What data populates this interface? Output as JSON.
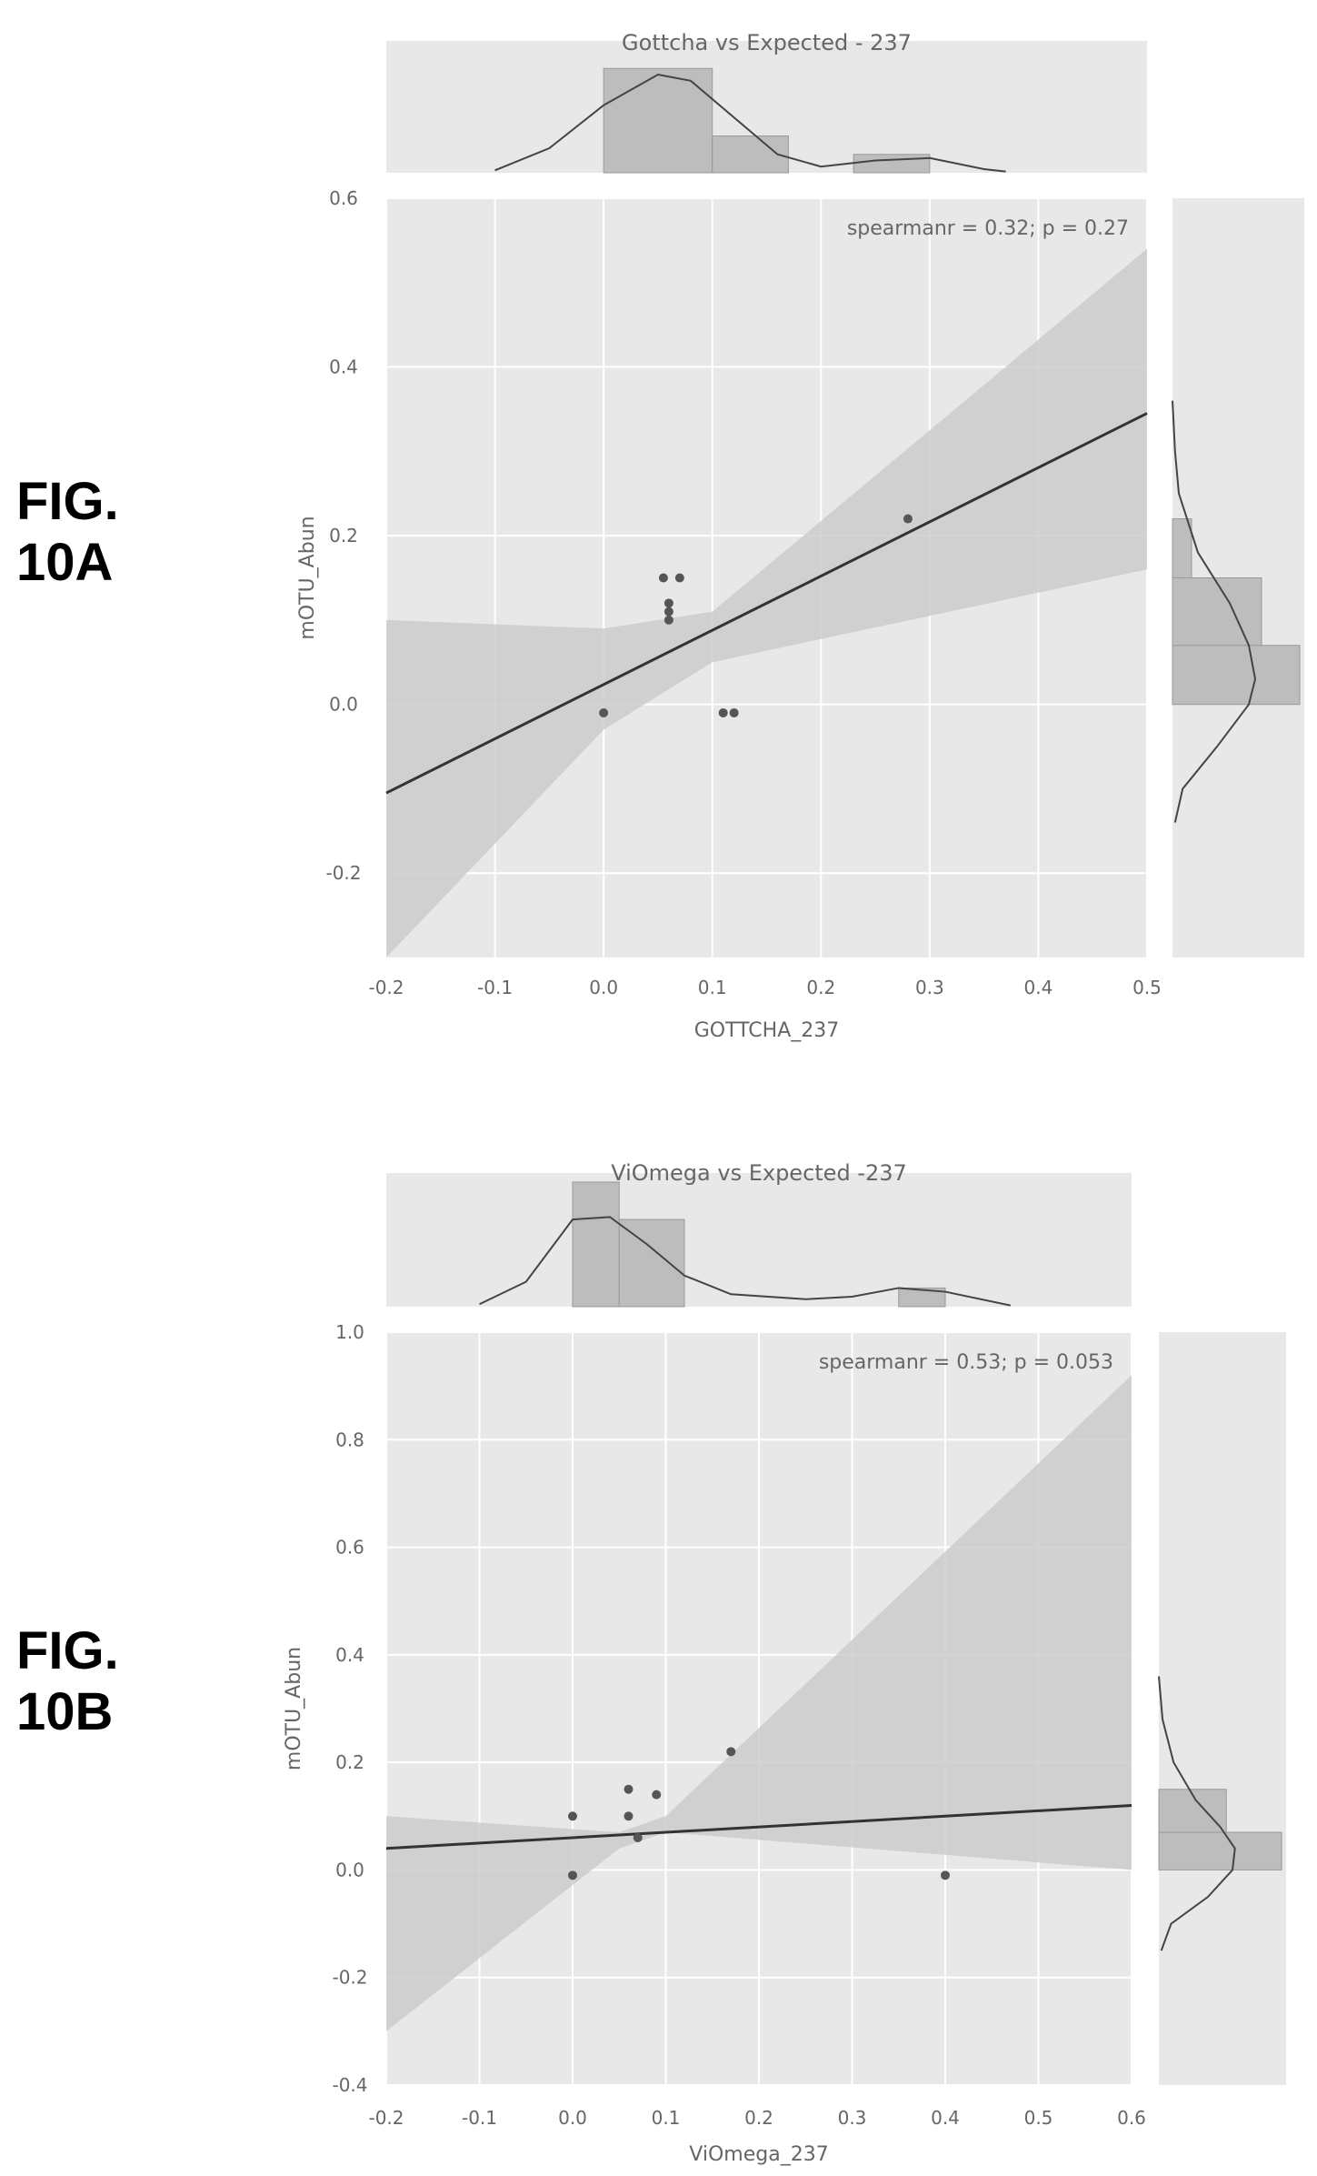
{
  "chart_data": [
    {
      "figure_label": "FIG. 10A",
      "type": "scatter",
      "title": "Gottcha vs Expected - 237",
      "xlabel": "GOTTCHA_237",
      "ylabel": "mOTU_Abun",
      "annotation": "spearmanr = 0.32; p = 0.27",
      "xlim": [
        -0.2,
        0.5
      ],
      "ylim": [
        -0.3,
        0.6
      ],
      "xticks": [
        -0.2,
        -0.1,
        0.0,
        0.1,
        0.2,
        0.3,
        0.4,
        0.5
      ],
      "xtick_labels": [
        "-0.2",
        "-0.1",
        "0.0",
        "0.1",
        "0.2",
        "0.3",
        "0.4",
        "0.5"
      ],
      "yticks": [
        -0.2,
        0.0,
        0.2,
        0.4,
        0.6
      ],
      "ytick_labels": [
        "-0.2",
        "0.0",
        "0.2",
        "0.4",
        "0.6"
      ],
      "grid": true,
      "points": [
        {
          "x": 0.0,
          "y": -0.01
        },
        {
          "x": 0.055,
          "y": 0.15
        },
        {
          "x": 0.07,
          "y": 0.15
        },
        {
          "x": 0.06,
          "y": 0.12
        },
        {
          "x": 0.06,
          "y": 0.11
        },
        {
          "x": 0.06,
          "y": 0.1
        },
        {
          "x": 0.11,
          "y": -0.01
        },
        {
          "x": 0.12,
          "y": -0.01
        },
        {
          "x": 0.28,
          "y": 0.22
        }
      ],
      "regression": {
        "x": [
          -0.2,
          0.5
        ],
        "y": [
          -0.105,
          0.345
        ]
      },
      "ci_band": {
        "x": [
          -0.2,
          0.0,
          0.1,
          0.5
        ],
        "lower": [
          -0.3,
          -0.03,
          0.05,
          0.16
        ],
        "upper": [
          0.1,
          0.09,
          0.11,
          0.54
        ]
      },
      "marginal_x": {
        "bins": [
          {
            "from": 0.0,
            "to": 0.1,
            "height": 0.85
          },
          {
            "from": 0.1,
            "to": 0.17,
            "height": 0.3
          },
          {
            "from": 0.23,
            "to": 0.3,
            "height": 0.15
          }
        ],
        "kde_x": [
          -0.1,
          -0.05,
          0.0,
          0.05,
          0.08,
          0.12,
          0.16,
          0.2,
          0.25,
          0.3,
          0.35,
          0.37
        ],
        "kde_y": [
          0.02,
          0.2,
          0.55,
          0.8,
          0.75,
          0.45,
          0.15,
          0.05,
          0.1,
          0.12,
          0.03,
          0.01
        ]
      },
      "marginal_y": {
        "bins": [
          {
            "from": 0.0,
            "to": 0.07,
            "height": 1.0
          },
          {
            "from": 0.07,
            "to": 0.15,
            "height": 0.7
          },
          {
            "from": 0.15,
            "to": 0.22,
            "height": 0.15
          }
        ],
        "kde_y": [
          -0.14,
          -0.1,
          -0.05,
          0.0,
          0.03,
          0.07,
          0.12,
          0.18,
          0.25,
          0.3,
          0.36
        ],
        "kde_x": [
          0.02,
          0.08,
          0.35,
          0.6,
          0.65,
          0.6,
          0.45,
          0.2,
          0.05,
          0.02,
          0.0
        ]
      }
    },
    {
      "figure_label": "FIG. 10B",
      "type": "scatter",
      "title": "ViOmega vs Expected -237",
      "xlabel": "ViOmega_237",
      "ylabel": "mOTU_Abun",
      "annotation": "spearmanr = 0.53; p = 0.053",
      "xlim": [
        -0.2,
        0.6
      ],
      "ylim": [
        -0.4,
        1.0
      ],
      "xticks": [
        -0.2,
        -0.1,
        0.0,
        0.1,
        0.2,
        0.3,
        0.4,
        0.5,
        0.6
      ],
      "xtick_labels": [
        "-0.2",
        "-0.1",
        "0.0",
        "0.1",
        "0.2",
        "0.3",
        "0.4",
        "0.5",
        "0.6"
      ],
      "yticks": [
        -0.4,
        -0.2,
        0.0,
        0.2,
        0.4,
        0.6,
        0.8,
        1.0
      ],
      "ytick_labels": [
        "-0.4",
        "-0.2",
        "0.0",
        "0.2",
        "0.4",
        "0.6",
        "0.8",
        "1.0"
      ],
      "grid": true,
      "points": [
        {
          "x": 0.0,
          "y": -0.01
        },
        {
          "x": 0.0,
          "y": 0.1
        },
        {
          "x": 0.06,
          "y": 0.15
        },
        {
          "x": 0.06,
          "y": 0.1
        },
        {
          "x": 0.07,
          "y": 0.06
        },
        {
          "x": 0.09,
          "y": 0.14
        },
        {
          "x": 0.17,
          "y": 0.22
        },
        {
          "x": 0.4,
          "y": -0.01
        }
      ],
      "regression": {
        "x": [
          -0.2,
          0.6
        ],
        "y": [
          0.04,
          0.12
        ]
      },
      "ci_band": {
        "x": [
          -0.2,
          0.05,
          0.1,
          0.6
        ],
        "lower": [
          -0.3,
          0.04,
          0.07,
          0.0
        ],
        "upper": [
          0.1,
          0.07,
          0.1,
          0.92
        ]
      },
      "marginal_x": {
        "bins": [
          {
            "from": 0.0,
            "to": 0.05,
            "height": 1.0
          },
          {
            "from": 0.05,
            "to": 0.12,
            "height": 0.7
          },
          {
            "from": 0.35,
            "to": 0.4,
            "height": 0.15
          }
        ],
        "kde_x": [
          -0.1,
          -0.05,
          0.0,
          0.04,
          0.08,
          0.12,
          0.17,
          0.25,
          0.3,
          0.35,
          0.4,
          0.47
        ],
        "kde_y": [
          0.02,
          0.2,
          0.7,
          0.72,
          0.5,
          0.25,
          0.1,
          0.06,
          0.08,
          0.15,
          0.12,
          0.01
        ]
      },
      "marginal_y": {
        "bins": [
          {
            "from": 0.0,
            "to": 0.07,
            "height": 1.0
          },
          {
            "from": 0.07,
            "to": 0.15,
            "height": 0.55
          }
        ],
        "kde_y": [
          -0.15,
          -0.1,
          -0.05,
          0.0,
          0.04,
          0.08,
          0.13,
          0.2,
          0.28,
          0.36
        ],
        "kde_x": [
          0.02,
          0.1,
          0.4,
          0.6,
          0.62,
          0.5,
          0.3,
          0.12,
          0.03,
          0.0
        ]
      }
    }
  ]
}
